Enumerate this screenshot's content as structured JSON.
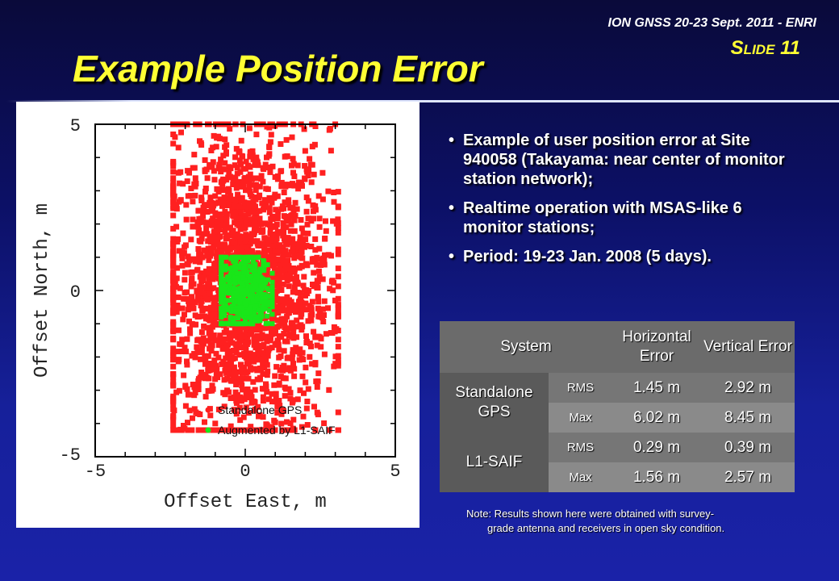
{
  "header": {
    "conference": "ION GNSS 20-23 Sept. 2011 - ENRI",
    "slide_label": "Slide 11",
    "title": "Example Position Error"
  },
  "chart_data": {
    "type": "scatter",
    "title": "",
    "xlabel": "Offset East, m",
    "ylabel": "Offset North, m",
    "xlim": [
      -5,
      5
    ],
    "ylim": [
      -5,
      5
    ],
    "xticks": [
      "-5",
      "0",
      "5"
    ],
    "yticks": [
      "-5",
      "0",
      "5"
    ],
    "grid": false,
    "legend_position": "bottom-right",
    "series": [
      {
        "name": "Standalone GPS",
        "color": "#ff2020",
        "distribution": {
          "center": [
            0.0,
            0.2
          ],
          "spread_east": 1.4,
          "spread_north": 2.3,
          "east_range": [
            -2.4,
            3.1
          ],
          "north_range": [
            -4.2,
            5.0
          ]
        },
        "points": [
          [
            -2.0,
            5.0
          ],
          [
            -1.7,
            3.2
          ],
          [
            -0.7,
            2.8
          ],
          [
            1.2,
            3.6
          ],
          [
            2.0,
            4.2
          ],
          [
            3.0,
            5.0
          ],
          [
            0.8,
            4.9
          ],
          [
            -2.4,
            -0.6
          ],
          [
            -1.0,
            -4.0
          ],
          [
            0.6,
            -4.2
          ],
          [
            1.6,
            -2.2
          ],
          [
            2.4,
            -2.9
          ],
          [
            2.8,
            -4.2
          ],
          [
            3.0,
            -0.3
          ],
          [
            2.2,
            -0.9
          ],
          [
            1.0,
            1.2
          ],
          [
            -0.4,
            1.8
          ],
          [
            -1.3,
            -0.8
          ],
          [
            0.0,
            -1.6
          ],
          [
            1.4,
            0.3
          ]
        ]
      },
      {
        "name": "Augmented by L1-SAIF",
        "color": "#19e619",
        "distribution": {
          "center": [
            -0.1,
            0.0
          ],
          "spread_east": 0.5,
          "spread_north": 0.6,
          "east_range": [
            -0.8,
            0.9
          ],
          "north_range": [
            -1.0,
            1.0
          ]
        },
        "points": [
          [
            -0.8,
            0.6
          ],
          [
            0.6,
            0.9
          ],
          [
            0.8,
            -0.6
          ],
          [
            -0.5,
            -0.8
          ],
          [
            0.1,
            1.0
          ],
          [
            0.0,
            -0.9
          ],
          [
            0.9,
            0.1
          ],
          [
            -0.8,
            -0.2
          ]
        ]
      }
    ]
  },
  "bullets": [
    "Example of user position error at Site 940058 (Takayama: near center of monitor station network);",
    "Realtime operation with MSAS-like 6 monitor stations;",
    "Period: 19-23 Jan. 2008 (5 days)."
  ],
  "bullet_symbol": "•",
  "table": {
    "headers": {
      "system": "System",
      "horizontal": "Horizontal Error",
      "vertical": "Vertical Error"
    },
    "rows": [
      {
        "system": "Standalone GPS",
        "metrics": [
          {
            "metric": "RMS",
            "horizontal": "1.45 m",
            "vertical": "2.92 m"
          },
          {
            "metric": "Max",
            "horizontal": "6.02 m",
            "vertical": "8.45 m"
          }
        ]
      },
      {
        "system": "L1-SAIF",
        "metrics": [
          {
            "metric": "RMS",
            "horizontal": "0.29 m",
            "vertical": "0.39 m"
          },
          {
            "metric": "Max",
            "horizontal": "1.56 m",
            "vertical": "2.57 m"
          }
        ]
      }
    ]
  },
  "note": {
    "line1": "Note: Results shown here were obtained with survey-",
    "line2": "grade antenna and receivers in open sky condition."
  },
  "colors": {
    "title": "#ffff33",
    "background_top": "#0a0a3a",
    "background_bottom": "#1a22a8"
  }
}
